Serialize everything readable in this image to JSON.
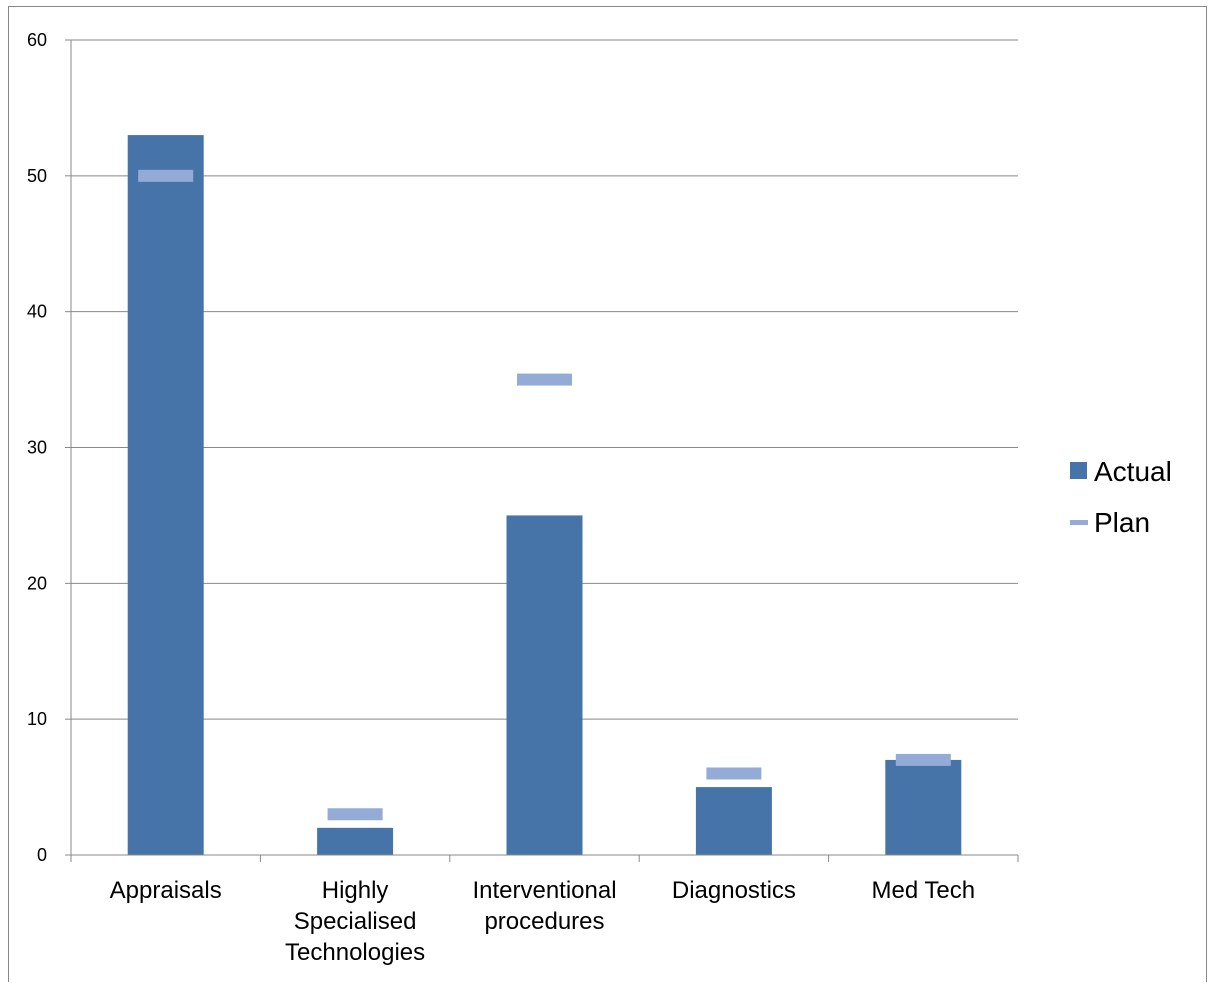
{
  "chart_data": {
    "type": "bar",
    "categories": [
      [
        "Appraisals"
      ],
      [
        "Highly",
        "Specialised",
        "Technologies"
      ],
      [
        "Interventional",
        "procedures"
      ],
      [
        "Diagnostics"
      ],
      [
        "Med Tech"
      ]
    ],
    "series": [
      {
        "name": "Actual",
        "kind": "bar",
        "values": [
          53,
          2,
          25,
          5,
          7
        ]
      },
      {
        "name": "Plan",
        "kind": "marker",
        "values": [
          50,
          3,
          35,
          6,
          7
        ]
      }
    ],
    "ylim": [
      0,
      60
    ],
    "yticks": [
      0,
      10,
      20,
      30,
      40,
      50,
      60
    ],
    "grid": true,
    "legend_position": "right",
    "colors": {
      "actual": "#4674A8",
      "plan": "#93ABD6",
      "grid": "#898989",
      "axis": "#898989"
    }
  }
}
